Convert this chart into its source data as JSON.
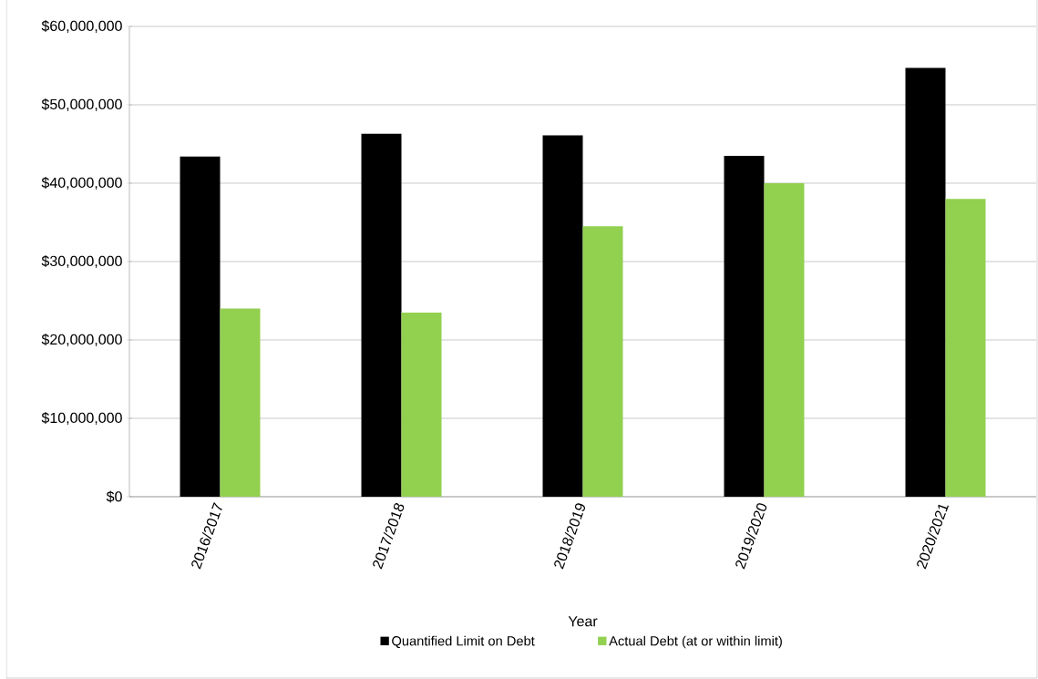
{
  "chart_data": {
    "type": "bar",
    "xlabel": "Year",
    "categories": [
      "2016/2017",
      "2017/2018",
      "2018/2019",
      "2019/2020",
      "2020/2021"
    ],
    "series": [
      {
        "name": "Quantified Limit on Debt",
        "color": "#000000",
        "values": [
          43400000,
          46300000,
          46100000,
          43500000,
          54700000
        ]
      },
      {
        "name": "Actual Debt (at or within limit)",
        "color": "#92d050",
        "values": [
          24000000,
          23500000,
          34500000,
          40000000,
          38000000
        ]
      }
    ],
    "ylim": [
      0,
      60000000
    ],
    "yticks": [
      {
        "value": 0,
        "label": "$0"
      },
      {
        "value": 10000000,
        "label": "$10,000,000"
      },
      {
        "value": 20000000,
        "label": "$20,000,000"
      },
      {
        "value": 30000000,
        "label": "$30,000,000"
      },
      {
        "value": 40000000,
        "label": "$40,000,000"
      },
      {
        "value": 50000000,
        "label": "$50,000,000"
      },
      {
        "value": 60000000,
        "label": "$60,000,000"
      }
    ],
    "grid": "y",
    "legend": "bottom"
  }
}
